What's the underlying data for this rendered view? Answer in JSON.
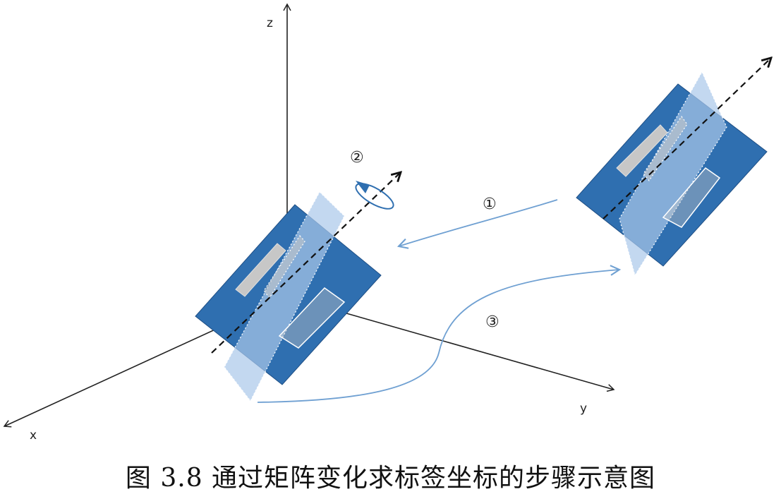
{
  "axes": {
    "x_label": "x",
    "y_label": "y",
    "z_label": "z"
  },
  "steps": {
    "step1": "①",
    "step2": "②",
    "step3": "③"
  },
  "caption": "图 3.8  通过矩阵变化求标签坐标的步骤示意图",
  "colors": {
    "board_dark": "#2f6fb0",
    "plane_light": "#a9c8ea",
    "arrow_light": "#6fa0d2",
    "component_gray": "#c8c8c8",
    "axis": "#222222"
  }
}
